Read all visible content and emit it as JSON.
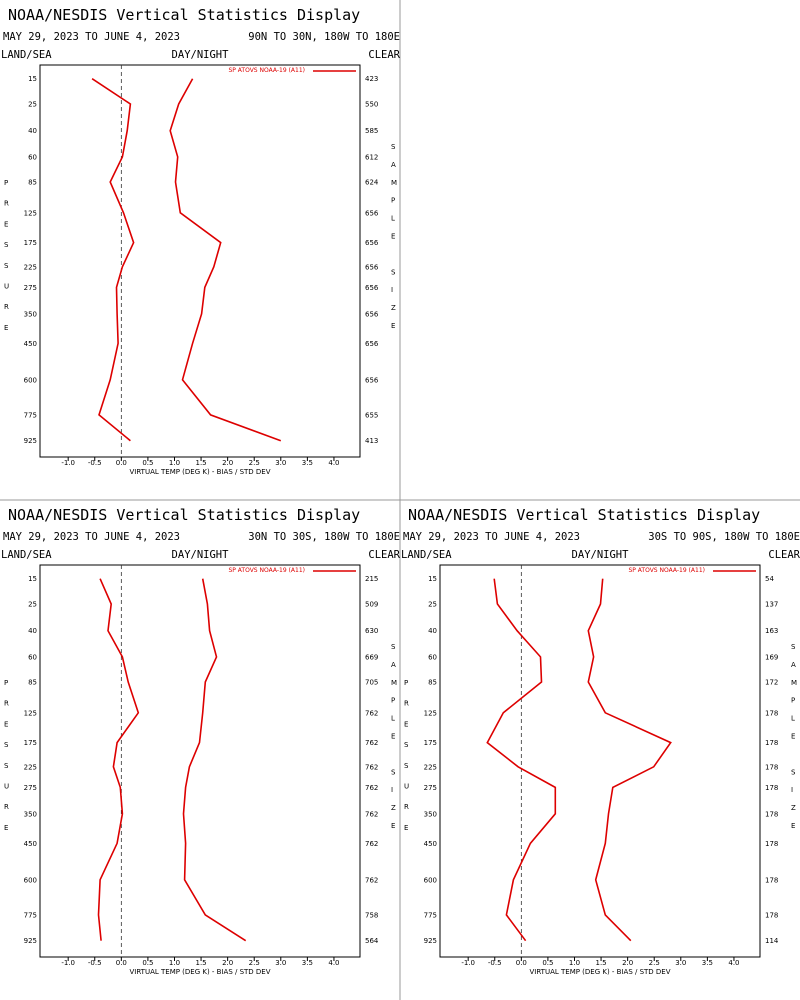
{
  "chart_data": [
    {
      "type": "line",
      "title": "NOAA/NESDIS Vertical Statistics Display",
      "subtitle": "MAY 29, 2023 TO JUNE 4, 2023",
      "region": "90N TO 30N, 180W TO 180E",
      "land_sea": "LAND/SEA",
      "day_night": "DAY/NIGHT",
      "clear": "CLEAR",
      "x_label": "VIRTUAL TEMP (DEG K) - BIAS / STD DEV",
      "y_label": "PRESSURE",
      "y2_label": "SAMPLE SIZE",
      "categories": [
        15,
        25,
        40,
        60,
        85,
        125,
        175,
        225,
        275,
        350,
        450,
        600,
        775,
        925
      ],
      "sample_size": [
        423,
        550,
        585,
        612,
        624,
        656,
        656,
        656,
        656,
        656,
        656,
        656,
        655,
        413
      ],
      "series": [
        {
          "name": "SP ATOVS NOAA-19 (A11)",
          "color": "#dd0000",
          "bias": [
            -0.55,
            0.17,
            0.11,
            0.02,
            -0.21,
            0.04,
            0.23,
            0.02,
            -0.09,
            -0.08,
            -0.06,
            -0.21,
            -0.42,
            0.17
          ],
          "std_dev": [
            1.34,
            1.08,
            0.92,
            1.06,
            1.02,
            1.11,
            1.87,
            1.74,
            1.57,
            1.51,
            1.34,
            1.15,
            1.68,
            3.0
          ]
        }
      ],
      "xlim": [
        -1.53,
        4.49
      ],
      "ylim": [
        11,
        1030
      ],
      "vline": 0,
      "xticks": [
        {
          "value": -1,
          "label": "-1.0"
        },
        -0.5,
        {
          "value": 0,
          "label": "0.0"
        },
        0.5,
        {
          "value": 1,
          "label": "1.0"
        },
        1.5,
        {
          "value": 2,
          "label": "2.0"
        },
        2.5,
        {
          "value": 3,
          "label": "3.0"
        },
        3.5,
        {
          "value": 4,
          "label": "4.0"
        }
      ]
    },
    {
      "type": "line",
      "title": "NOAA/NESDIS Vertical Statistics Display",
      "subtitle": "MAY 29, 2023 TO JUNE 4, 2023",
      "region": "30N TO 30S, 180W TO 180E",
      "land_sea": "LAND/SEA",
      "day_night": "DAY/NIGHT",
      "clear": "CLEAR",
      "x_label": "VIRTUAL TEMP (DEG K) - BIAS / STD DEV",
      "y_label": "PRESSURE",
      "y2_label": "SAMPLE SIZE",
      "categories": [
        15,
        25,
        40,
        60,
        85,
        125,
        175,
        225,
        275,
        350,
        450,
        600,
        775,
        925
      ],
      "sample_size": [
        215,
        509,
        630,
        669,
        705,
        762,
        762,
        762,
        762,
        762,
        762,
        762,
        758,
        564
      ],
      "series": [
        {
          "name": "SP ATOVS NOAA-19 (A11)",
          "color": "#dd0000",
          "bias": [
            -0.4,
            -0.19,
            -0.25,
            0.02,
            0.13,
            0.32,
            -0.08,
            -0.15,
            -0.02,
            0.02,
            -0.08,
            -0.4,
            -0.43,
            -0.38
          ],
          "std_dev": [
            1.53,
            1.62,
            1.66,
            1.79,
            1.58,
            1.53,
            1.47,
            1.28,
            1.21,
            1.17,
            1.21,
            1.19,
            1.58,
            2.34
          ]
        }
      ],
      "xlim": [
        -1.53,
        4.49
      ],
      "ylim": [
        11,
        1030
      ],
      "vline": 0,
      "xticks": [
        {
          "value": -1,
          "label": "-1.0"
        },
        -0.5,
        {
          "value": 0,
          "label": "0.0"
        },
        0.5,
        {
          "value": 1,
          "label": "1.0"
        },
        1.5,
        {
          "value": 2,
          "label": "2.0"
        },
        2.5,
        {
          "value": 3,
          "label": "3.0"
        },
        3.5,
        {
          "value": 4,
          "label": "4.0"
        }
      ]
    },
    {
      "type": "line",
      "title": "NOAA/NESDIS Vertical Statistics Display",
      "subtitle": "MAY 29, 2023 TO JUNE 4, 2023",
      "region": "30S TO 90S, 180W TO 180E",
      "land_sea": "LAND/SEA",
      "day_night": "DAY/NIGHT",
      "clear": "CLEAR",
      "x_label": "VIRTUAL TEMP (DEG K) - BIAS / STD DEV",
      "y_label": "PRESSURE",
      "y2_label": "SAMPLE SIZE",
      "categories": [
        15,
        25,
        40,
        60,
        85,
        125,
        175,
        225,
        275,
        350,
        450,
        600,
        775,
        925
      ],
      "sample_size": [
        54,
        137,
        163,
        169,
        172,
        178,
        178,
        178,
        178,
        178,
        178,
        178,
        178,
        114
      ],
      "series": [
        {
          "name": "SP ATOVS NOAA-19 (A11)",
          "color": "#dd0000",
          "bias": [
            -0.51,
            -0.45,
            -0.08,
            0.36,
            0.38,
            -0.34,
            -0.64,
            -0.06,
            0.64,
            0.64,
            0.17,
            -0.15,
            -0.28,
            0.08
          ],
          "std_dev": [
            1.53,
            1.49,
            1.26,
            1.36,
            1.26,
            1.58,
            2.81,
            2.49,
            1.72,
            1.64,
            1.58,
            1.4,
            1.58,
            2.06
          ]
        }
      ],
      "xlim": [
        -1.53,
        4.49
      ],
      "ylim": [
        11,
        1030
      ],
      "vline": 0,
      "xticks": [
        {
          "value": -1,
          "label": "-1.0"
        },
        -0.5,
        {
          "value": 0,
          "label": "0.0"
        },
        0.5,
        {
          "value": 1,
          "label": "1.0"
        },
        1.5,
        {
          "value": 2,
          "label": "2.0"
        },
        2.5,
        {
          "value": 3,
          "label": "3.0"
        },
        3.5,
        {
          "value": 4,
          "label": "4.0"
        }
      ]
    }
  ]
}
